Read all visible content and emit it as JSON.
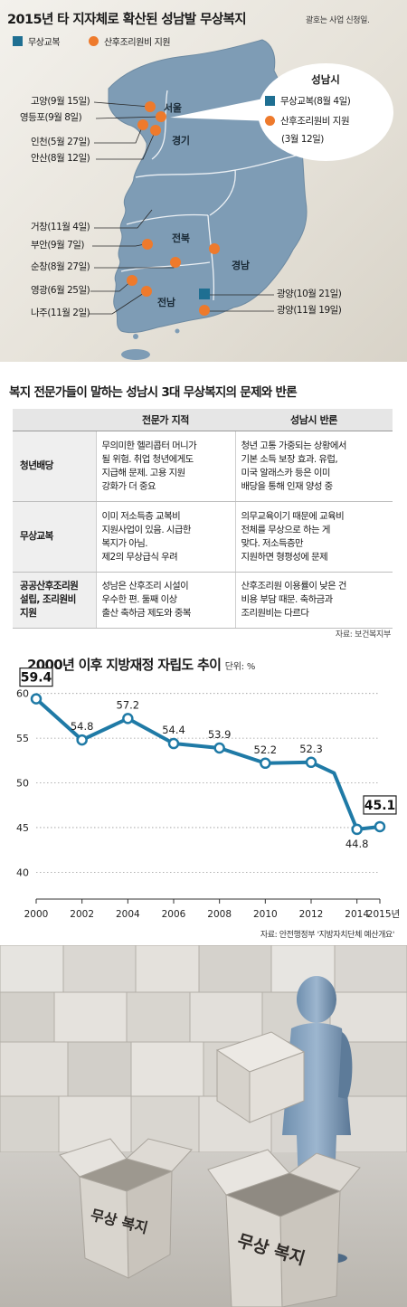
{
  "map": {
    "title": "2015년 타 지자체로 확산된 성남발 무상복지",
    "note": "괄호는 사업 신청일.",
    "legend": {
      "uniform": "무상교복",
      "postpartum": "산후조리원비 지원"
    },
    "colors": {
      "uniform": "#1f6f92",
      "postpartum": "#ee7a2c",
      "land": "#7e9cb5"
    },
    "regions": {
      "seoul": "서울",
      "gyeonggi": "경기",
      "jeonbuk": "전북",
      "gyeongnam": "경남",
      "jeonnam": "전남"
    },
    "callout": {
      "title": "성남시",
      "uniform": "무상교복(8월 4일)",
      "postpartum_line1": "산후조리원비 지원",
      "postpartum_line2": "(3월 12일)"
    },
    "places": [
      {
        "label": "고양(9월 15일)",
        "type": "postpartum"
      },
      {
        "label": "영등포(9월 8일)",
        "type": "postpartum"
      },
      {
        "label": "인천(5월 27일)",
        "type": "postpartum"
      },
      {
        "label": "안산(8월 12일)",
        "type": "postpartum"
      },
      {
        "label": "거창(11월 4일)",
        "type": "postpartum"
      },
      {
        "label": "부안(9월 7일)",
        "type": "postpartum"
      },
      {
        "label": "순창(8월 27일)",
        "type": "postpartum"
      },
      {
        "label": "영광(6월 25일)",
        "type": "postpartum"
      },
      {
        "label": "나주(11월 2일)",
        "type": "postpartum"
      },
      {
        "label": "광양(10월 21일)",
        "type": "uniform"
      },
      {
        "label": "광양(11월 19일)",
        "type": "postpartum"
      }
    ]
  },
  "table": {
    "title": "복지 전문가들이 말하는 성남시 3대 무상복지의 문제와 반론",
    "headers": [
      "",
      "전문가 지적",
      "성남시 반론"
    ],
    "rows": [
      {
        "name": "청년배당",
        "expert": [
          "무의미한 헬리콥터 머니가",
          "될 위험. 취업 청년에게도",
          "지급해 문제. 고용 지원",
          "강화가 더 중요"
        ],
        "city": [
          "청년 고통 가중되는 상황에서",
          "기본 소득 보장 효과. 유럽,",
          "미국 알래스카 등은 이미",
          "배당을 통해 인재 양성 중"
        ]
      },
      {
        "name": "무상교복",
        "expert": [
          "이미 저소득층 교복비",
          "지원사업이 있음. 시급한",
          "복지가 아님.",
          "제2의 무상급식 우려"
        ],
        "city": [
          "의무교육이기 때문에 교육비",
          "전체를 무상으로 하는 게",
          "맞다. 저소득층만",
          "지원하면 형평성에 문제"
        ]
      },
      {
        "name_lines": [
          "공공산후조리원",
          "설립, 조리원비",
          "지원"
        ],
        "expert": [
          "성남은 산후조리 시설이",
          "우수한 편. 둘째 이상",
          "출산 축하금 제도와 중복"
        ],
        "city": [
          "산후조리원 이용률이 낮은 건",
          "비용 부담 때문. 축하금과",
          "조리원비는 다르다"
        ]
      }
    ],
    "source": "자료: 보건복지부"
  },
  "chart_data": {
    "type": "line",
    "title": "2000년 이후 지방재정 자립도 추이",
    "unit": "단위: %",
    "x": [
      2000,
      2002,
      2004,
      2006,
      2008,
      2010,
      2012,
      2013,
      2014,
      2015
    ],
    "series": [
      {
        "values": [
          59.4,
          54.8,
          57.2,
          54.4,
          53.9,
          52.2,
          52.3,
          51.1,
          44.8,
          45.1
        ]
      }
    ],
    "point_labels": [
      "59.4",
      "54.8",
      "57.2",
      "54.4",
      "53.9",
      "52.2",
      "52.3",
      "",
      "44.8",
      "45.1"
    ],
    "xticks": [
      2000,
      2002,
      2004,
      2006,
      2008,
      2010,
      2012,
      2014
    ],
    "xtick_labels": [
      "2000",
      "2002",
      "2004",
      "2006",
      "2008",
      "2010",
      "2012",
      "2014"
    ],
    "last_tick_label": "2015년",
    "yticks": [
      40,
      45,
      50,
      55,
      60
    ],
    "ylim": [
      37,
      62.5
    ],
    "xlim": [
      2000,
      2015
    ],
    "grid": "horizontal-dotted",
    "color": "#1f7aa6",
    "source": "자료: 안전행정부 '지방자치단체 예산개요'"
  },
  "illustration": {
    "box_left": "무상  복지",
    "box_right": "무상  복지"
  }
}
